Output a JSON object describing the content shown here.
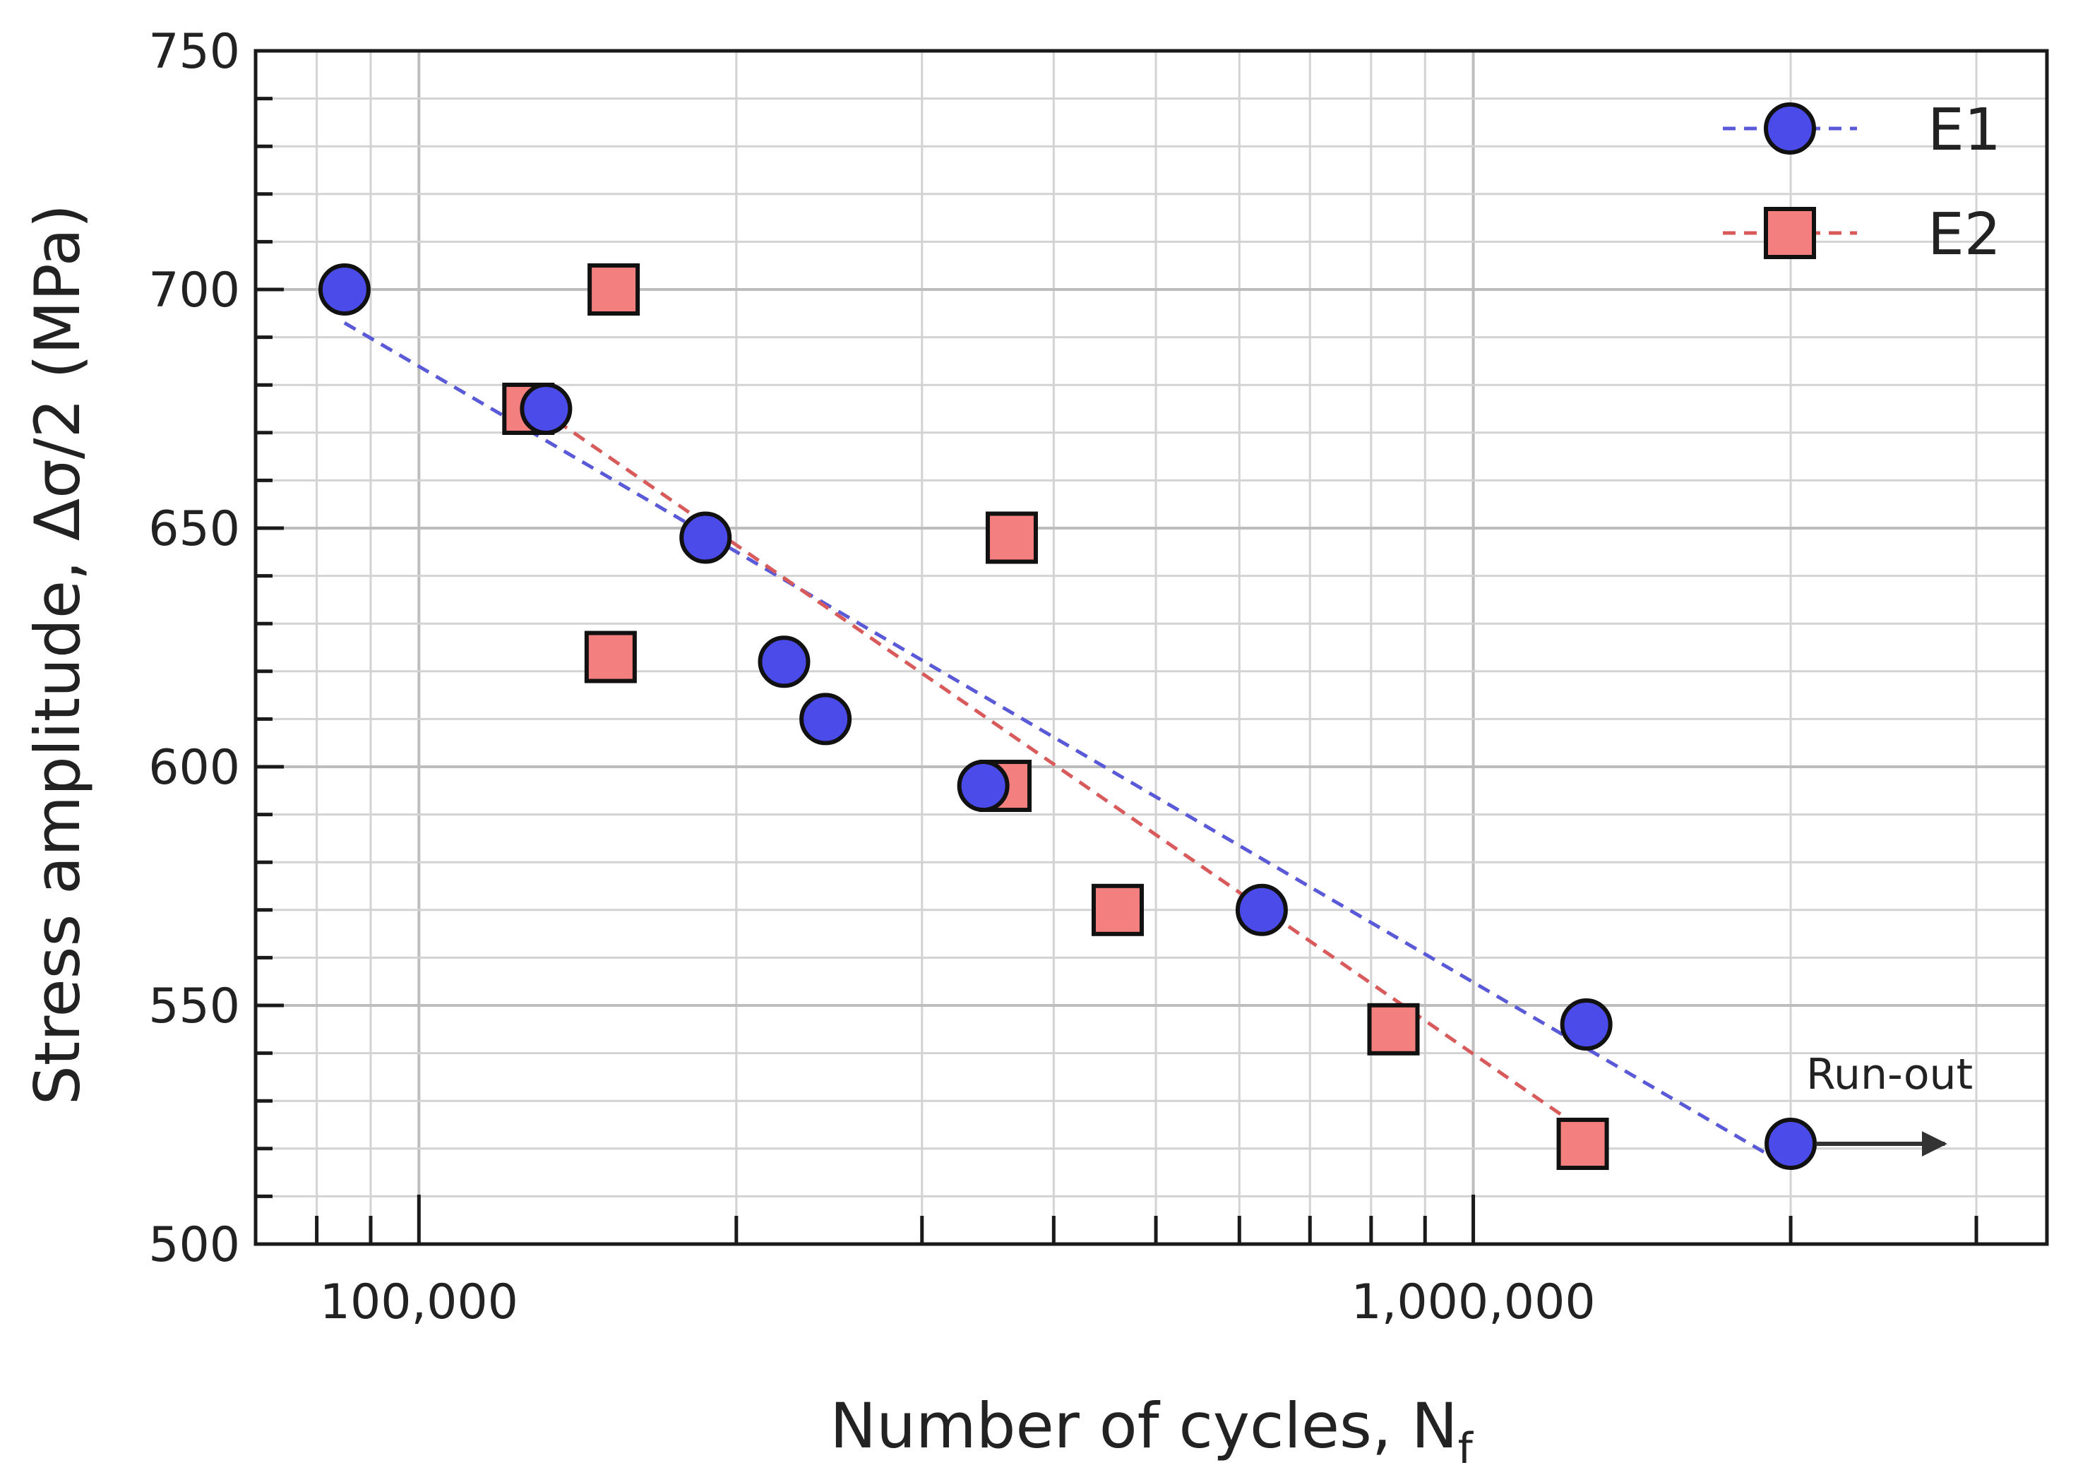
{
  "chart_data": {
    "type": "scatter",
    "title": "",
    "xlabel": "Number of cycles, N",
    "xlabel_sub": "f",
    "ylabel": "Stress amplitude, Δσ/2 (MPa)",
    "x_scale": "log",
    "xlim": [
      70000,
      3500000
    ],
    "ylim": [
      500,
      750
    ],
    "x_tick_values": [
      100000,
      1000000
    ],
    "x_tick_labels": [
      "100,000",
      "1,000,000"
    ],
    "y_tick_values": [
      500,
      550,
      600,
      650,
      700,
      750
    ],
    "y_tick_labels": [
      "500",
      "550",
      "600",
      "650",
      "700",
      "750"
    ],
    "grid": true,
    "legend_position": "top-right",
    "series": [
      {
        "name": "E1",
        "marker": "circle",
        "color": "#4b4bea",
        "line_color": "#5a5ad8",
        "points": [
          {
            "x": 85000,
            "y": 700
          },
          {
            "x": 132000,
            "y": 675
          },
          {
            "x": 187000,
            "y": 648
          },
          {
            "x": 222000,
            "y": 622
          },
          {
            "x": 243000,
            "y": 610
          },
          {
            "x": 343000,
            "y": 596
          },
          {
            "x": 630000,
            "y": 570
          },
          {
            "x": 1280000,
            "y": 546
          },
          {
            "x": 2000000,
            "y": 521
          }
        ],
        "fit": {
          "x": [
            85000,
            2000000
          ],
          "y": [
            693,
            516
          ]
        }
      },
      {
        "name": "E2",
        "marker": "square",
        "color": "#f47f7f",
        "line_color": "#d85a5a",
        "points": [
          {
            "x": 127000,
            "y": 675
          },
          {
            "x": 152000,
            "y": 623
          },
          {
            "x": 153000,
            "y": 700
          },
          {
            "x": 360000,
            "y": 596
          },
          {
            "x": 365000,
            "y": 648
          },
          {
            "x": 460000,
            "y": 570
          },
          {
            "x": 840000,
            "y": 545
          },
          {
            "x": 1270000,
            "y": 521
          }
        ],
        "fit": {
          "x": [
            130000,
            1270000
          ],
          "y": [
            675,
            524
          ]
        }
      }
    ],
    "annotations": [
      {
        "text": "Run-out",
        "x": 2000000,
        "y": 521,
        "arrow_to_x": 2800000
      }
    ]
  }
}
